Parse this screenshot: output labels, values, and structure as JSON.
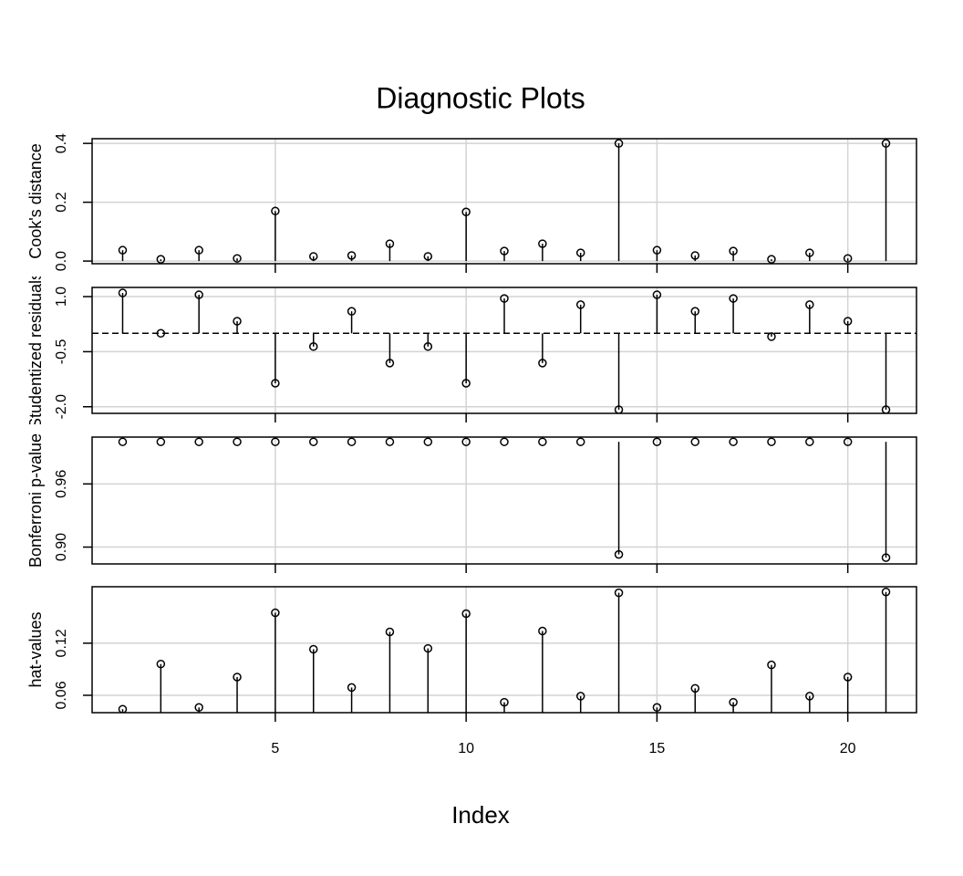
{
  "chart_data": [
    {
      "type": "stem",
      "title": "Diagnostic Plots",
      "ylabel": "Cook's distance",
      "x": [
        1,
        2,
        3,
        4,
        5,
        6,
        7,
        8,
        9,
        10,
        11,
        12,
        13,
        14,
        15,
        16,
        17,
        18,
        19,
        20,
        21
      ],
      "values": [
        0.037,
        0.006,
        0.037,
        0.009,
        0.17,
        0.016,
        0.019,
        0.059,
        0.016,
        0.167,
        0.034,
        0.059,
        0.028,
        0.4,
        0.037,
        0.019,
        0.034,
        0.006,
        0.028,
        0.009,
        0.4
      ],
      "stem_base": 0,
      "xlim": [
        0.2,
        21.8
      ],
      "ylim": [
        -0.009,
        0.416
      ],
      "yticks": [
        {
          "value": 0,
          "label": "0.0"
        },
        0.2,
        0.4
      ],
      "grid": true
    },
    {
      "type": "stem",
      "ylabel": "Studentized residuals",
      "x": [
        1,
        2,
        3,
        4,
        5,
        6,
        7,
        8,
        9,
        10,
        11,
        12,
        13,
        14,
        15,
        16,
        17,
        18,
        19,
        20,
        21
      ],
      "values": [
        1.1,
        0,
        1.05,
        0.33,
        -1.36,
        -0.36,
        0.6,
        -0.81,
        -0.36,
        -1.36,
        0.95,
        -0.81,
        0.78,
        -2.08,
        1.05,
        0.6,
        0.95,
        -0.09,
        0.78,
        0.33,
        -2.08
      ],
      "stem_base": 0,
      "hline": 0,
      "xlim": [
        0.2,
        21.8
      ],
      "ylim": [
        -2.18,
        1.25
      ],
      "yticks": [
        {
          "value": -2,
          "label": "-2.0"
        },
        -0.5,
        {
          "value": 1,
          "label": "1.0"
        }
      ],
      "grid": true
    },
    {
      "type": "stem",
      "ylabel": "Bonferroni p-value",
      "x": [
        1,
        2,
        3,
        4,
        5,
        6,
        7,
        8,
        9,
        10,
        11,
        12,
        13,
        14,
        15,
        16,
        17,
        18,
        19,
        20,
        21
      ],
      "values": [
        1,
        1,
        1,
        1,
        1,
        1,
        1,
        1,
        1,
        1,
        1,
        1,
        1,
        0.893,
        1,
        1,
        1,
        1,
        1,
        1,
        0.89
      ],
      "stem_base": 1,
      "xlim": [
        0.2,
        21.8
      ],
      "ylim": [
        0.884,
        1.0045
      ],
      "yticks": [
        {
          "value": 0.9,
          "label": "0.90"
        },
        0.96
      ],
      "grid": true
    },
    {
      "type": "stem",
      "ylabel": "hat-values",
      "xlabel": "Index",
      "x": [
        1,
        2,
        3,
        4,
        5,
        6,
        7,
        8,
        9,
        10,
        11,
        12,
        13,
        14,
        15,
        16,
        17,
        18,
        19,
        20,
        21
      ],
      "values": [
        0.044,
        0.096,
        0.046,
        0.081,
        0.155,
        0.113,
        0.069,
        0.133,
        0.114,
        0.154,
        0.052,
        0.134,
        0.059,
        0.178,
        0.046,
        0.068,
        0.052,
        0.095,
        0.059,
        0.081,
        0.179
      ],
      "stem_base": 0,
      "xlim": [
        0.2,
        21.8
      ],
      "ylim": [
        0.04,
        0.185
      ],
      "xticks": [
        5,
        10,
        15,
        20
      ],
      "yticks": [
        0.06,
        0.12
      ],
      "grid": true
    }
  ]
}
